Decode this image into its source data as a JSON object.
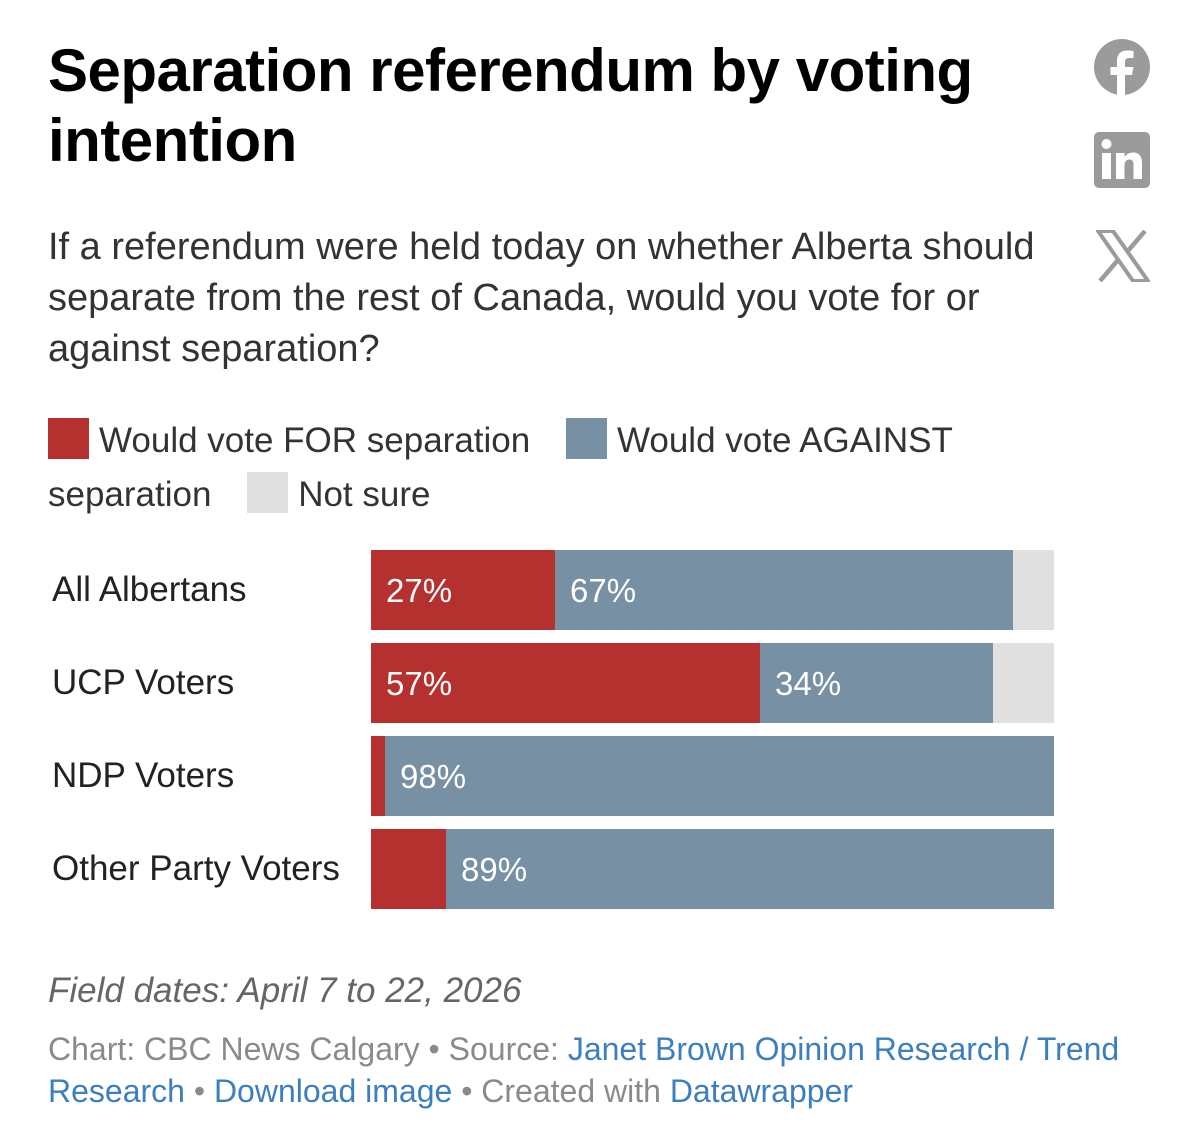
{
  "header": {
    "title": "Separation referendum by voting intention",
    "subtitle": "If a referendum were held today on whether Alberta should separate from the rest of Canada, would you vote for or against separation?"
  },
  "share": {
    "facebook": "facebook-icon",
    "linkedin": "linkedin-icon",
    "x": "x-icon",
    "icon_color": "#9b9b9b"
  },
  "colors": {
    "for": "#b5312f",
    "against": "#7790a4",
    "not_sure": "#e0e0e0"
  },
  "chart_data": {
    "type": "bar",
    "orientation": "horizontal",
    "stacked": true,
    "xlim": [
      0,
      100
    ],
    "categories": [
      "All Albertans",
      "UCP Voters",
      "NDP Voters",
      "Other Party Voters"
    ],
    "series": [
      {
        "name": "Would vote FOR separation",
        "values": [
          27,
          57,
          2,
          11
        ],
        "labels": [
          "27%",
          "57%",
          "",
          ""
        ]
      },
      {
        "name": "Would vote AGAINST separation",
        "values": [
          67,
          34,
          98,
          89
        ],
        "labels": [
          "67%",
          "34%",
          "98%",
          "89%"
        ]
      },
      {
        "name": "Not sure",
        "values": [
          6,
          9,
          0,
          0
        ],
        "labels": [
          "",
          "",
          "",
          ""
        ]
      }
    ],
    "legend_position": "top"
  },
  "notes": "Field dates: April 7 to 22, 2026",
  "footer": {
    "chart_prefix": "Chart: CBC News Calgary",
    "sep": "•",
    "source_prefix": "Source:",
    "source": "Janet Brown Opinion Research / Trend Research",
    "download": "Download image",
    "created_prefix": "Created with",
    "created_tool": "Datawrapper"
  }
}
